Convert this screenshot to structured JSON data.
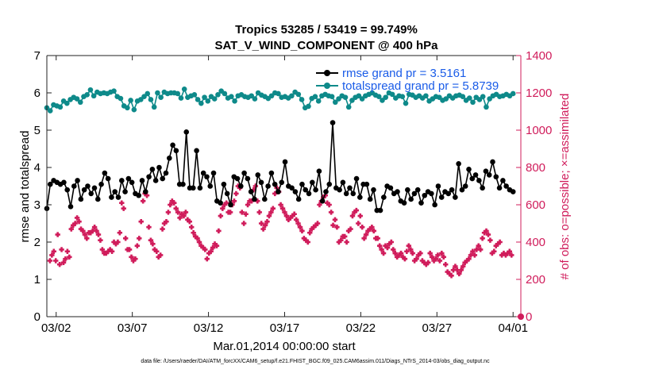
{
  "chart_data": {
    "type": "line",
    "title_line1": "Tropics 53285 / 53419 = 99.749%",
    "title_line2": "SAT_V_WIND_COMPONENT @ 400 hPa",
    "xlabel": "Mar.01,2014 00:00:00 start",
    "ylabel_left": "rmse and totalspread",
    "ylabel_right": "# of obs: o=possible; ×=assimilated",
    "footer": "data file: /Users/raeder/DAI/ATM_forcXX/CAM6_setup/f.e21.FHIST_BGC.f09_025.CAM6assim.011/Diags_NTrS_2014-03/obs_diag_output.nc",
    "xlim": [
      0,
      30.5
    ],
    "ylim_left": [
      0,
      7
    ],
    "ylim_right": [
      0,
      1400
    ],
    "x_ticks": [
      {
        "x": 0.6,
        "label": "03/02"
      },
      {
        "x": 5.5,
        "label": "03/07"
      },
      {
        "x": 10.4,
        "label": "03/12"
      },
      {
        "x": 15.3,
        "label": "03/17"
      },
      {
        "x": 20.2,
        "label": "03/22"
      },
      {
        "x": 25.1,
        "label": "03/27"
      },
      {
        "x": 30.0,
        "label": "04/01"
      }
    ],
    "y_ticks_left": [
      "0",
      "1",
      "2",
      "3",
      "4",
      "5",
      "6",
      "7"
    ],
    "y_ticks_right": [
      "0",
      "200",
      "400",
      "600",
      "800",
      "1000",
      "1200",
      "1400"
    ],
    "colors": {
      "rmse": "#000000",
      "spread": "#0e8a8a",
      "obs": "#d01c5b",
      "legend_text": "#1a5ce8"
    },
    "legend": [
      {
        "name": "rmse grand pr = 3.5161",
        "color": "#000000"
      },
      {
        "name": "totalspread grand pr = 5.8739",
        "color": "#0e8a8a"
      }
    ],
    "series": [
      {
        "name": "rmse",
        "axis": "left",
        "values": [
          2.9,
          3.55,
          3.65,
          3.6,
          3.55,
          3.6,
          3.4,
          2.95,
          3.5,
          3.65,
          3.15,
          3.4,
          3.5,
          3.3,
          3.45,
          3.15,
          3.55,
          3.85,
          3.7,
          3.2,
          3.35,
          3.2,
          3.65,
          3.35,
          3.7,
          3.6,
          3.3,
          3.25,
          3.65,
          3.35,
          3.75,
          3.95,
          3.65,
          4.0,
          3.7,
          3.85,
          4.25,
          4.6,
          4.45,
          3.55,
          3.55,
          4.95,
          3.45,
          3.45,
          4.45,
          3.45,
          3.85,
          3.75,
          3.5,
          3.85,
          3.1,
          3.05,
          3.55,
          3.3,
          3.0,
          3.75,
          3.7,
          3.5,
          3.85,
          3.7,
          3.35,
          3.15,
          3.8,
          3.6,
          3.15,
          3.5,
          3.85,
          3.55,
          3.35,
          3.6,
          4.15,
          3.5,
          3.45,
          3.35,
          3.15,
          3.55,
          3.4,
          3.3,
          3.6,
          3.4,
          3.9,
          3.1,
          3.35,
          3.55,
          5.2,
          3.45,
          3.4,
          3.6,
          3.3,
          3.45,
          3.3,
          3.7,
          3.2,
          3.55,
          3.55,
          3.15,
          3.4,
          2.85,
          2.85,
          3.2,
          3.5,
          3.45,
          3.3,
          3.35,
          3.1,
          3.05,
          3.4,
          3.15,
          3.3,
          3.4,
          3.05,
          3.25,
          3.35,
          3.3,
          3.0,
          3.5,
          3.2,
          3.35,
          3.3,
          3.4,
          3.2,
          4.1,
          3.4,
          3.5,
          3.95,
          3.7,
          3.8,
          3.65,
          3.45,
          3.9,
          3.8,
          4.15,
          3.75,
          3.45,
          3.65,
          3.5,
          3.4,
          3.35
        ]
      },
      {
        "name": "totalspread",
        "axis": "left",
        "values": [
          5.6,
          5.52,
          5.68,
          5.65,
          5.62,
          5.78,
          5.72,
          5.82,
          5.88,
          5.84,
          5.75,
          5.9,
          5.95,
          6.08,
          5.92,
          6.02,
          5.98,
          6.0,
          5.98,
          6.02,
          6.05,
          5.9,
          5.85,
          5.65,
          5.6,
          5.8,
          5.55,
          5.78,
          5.82,
          5.9,
          5.98,
          5.82,
          5.62,
          6.0,
          5.88,
          6.02,
          5.98,
          6.0,
          6.0,
          5.98,
          5.86,
          6.1,
          5.88,
          5.92,
          5.95,
          5.82,
          5.72,
          5.88,
          5.78,
          5.9,
          5.84,
          5.95,
          6.05,
          5.98,
          5.86,
          5.9,
          5.78,
          5.92,
          5.95,
          5.9,
          5.88,
          5.92,
          5.84,
          6.0,
          5.94,
          5.9,
          5.85,
          5.92,
          6.0,
          5.98,
          5.88,
          5.9,
          5.86,
          5.92,
          6.02,
          5.96,
          5.82,
          5.6,
          5.64,
          5.85,
          5.9,
          5.78,
          5.92,
          5.96,
          5.92,
          5.9,
          5.75,
          5.84,
          5.92,
          5.88,
          5.62,
          5.8,
          5.88,
          5.92,
          5.84,
          5.92,
          5.96,
          6.0,
          5.94,
          5.9,
          5.8,
          5.88,
          6.0,
          5.96,
          5.86,
          5.92,
          5.9,
          5.72,
          5.96,
          5.94,
          5.88,
          5.92,
          5.86,
          5.92,
          5.78,
          5.84,
          5.9,
          5.88,
          5.8,
          5.84,
          5.92,
          5.86,
          5.92,
          5.94,
          5.9,
          5.8,
          5.86,
          5.75,
          5.88,
          5.82,
          5.9,
          5.62,
          5.84,
          5.92,
          5.96,
          5.9,
          5.92,
          5.96,
          5.92,
          5.98
        ]
      },
      {
        "name": "obs assimilated",
        "axis": "right",
        "values": [
          300,
          330,
          350,
          300,
          440,
          280,
          360,
          290,
          310,
          350,
          320,
          470,
          490,
          500,
          530,
          510,
          470,
          460,
          440,
          420,
          450,
          450,
          460,
          480,
          460,
          440,
          410,
          360,
          340,
          340,
          350,
          360,
          350,
          400,
          390,
          400,
          450,
          610,
          580,
          420,
          360,
          360,
          320,
          300,
          310,
          380,
          420,
          510,
          620,
          660,
          650,
          480,
          410,
          390,
          360,
          350,
          320,
          330,
          470,
          500,
          510,
          560,
          600,
          620,
          610,
          580,
          560,
          530,
          550,
          540,
          560,
          520,
          510,
          480,
          450,
          430,
          420,
          400,
          380,
          370,
          360,
          310,
          340,
          350,
          370,
          390,
          380,
          460,
          540,
          580,
          600,
          610,
          560,
          560,
          600,
          620,
          660,
          700,
          690,
          560,
          500,
          550,
          600,
          620,
          620,
          680,
          700,
          620,
          560,
          500,
          470,
          490,
          510,
          540,
          560,
          580,
          660,
          690,
          670,
          600,
          580,
          560,
          540,
          520,
          530,
          540,
          550,
          520,
          500,
          480,
          460,
          420,
          410,
          400,
          450,
          470,
          480,
          490,
          500,
          600,
          620,
          640,
          650,
          610,
          600,
          560,
          490,
          520,
          480,
          400,
          410,
          430,
          430,
          400,
          460,
          470,
          540,
          560,
          570,
          500,
          540,
          480,
          420,
          440,
          460,
          470,
          480,
          460,
          420,
          420,
          380,
          360,
          340,
          380,
          370,
          390,
          400,
          360,
          340,
          320,
          330,
          340,
          320,
          310,
          350,
          380,
          360,
          340,
          300,
          310,
          330,
          340,
          300,
          290,
          280,
          290,
          340,
          320,
          300,
          310,
          330,
          300,
          340,
          320,
          280,
          240,
          230,
          220,
          250,
          270,
          250,
          230,
          250,
          270,
          290,
          300,
          310,
          330,
          350,
          330,
          360,
          380,
          360,
          420,
          450,
          460,
          440,
          410,
          340,
          350,
          380,
          390,
          400,
          330,
          340,
          330,
          340,
          350,
          330
        ]
      }
    ]
  }
}
